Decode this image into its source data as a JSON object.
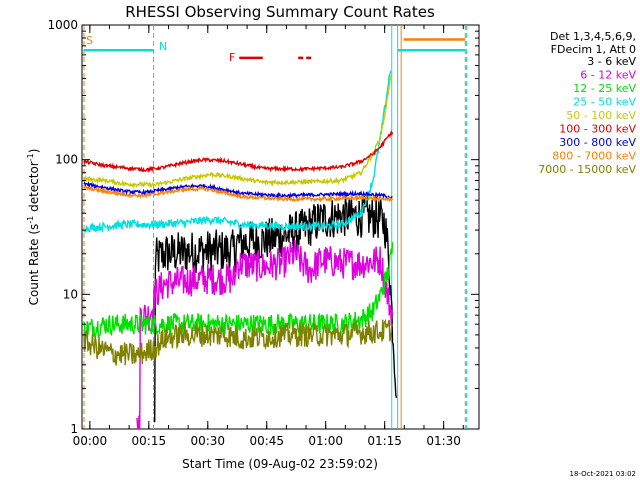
{
  "chart_data": {
    "type": "line",
    "title": "RHESSI Observing Summary Count Rates",
    "xlabel": "Start Time (09-Aug-02 23:59:02)",
    "ylabel_main": "Count Rate (s",
    "ylabel_sup1": "-1",
    "ylabel_mid": " detector",
    "ylabel_sup2": "-1",
    "ylabel_end": ")",
    "footer": "18-Oct-2021 03:02",
    "yscale": "log",
    "ylim": [
      1,
      1000
    ],
    "xlim_min": [
      -1,
      100
    ],
    "ytick_labels": [
      {
        "v": 1,
        "label": "1"
      },
      {
        "v": 10,
        "label": "10"
      },
      {
        "v": 100,
        "label": "100"
      },
      {
        "v": 1000,
        "label": "1000"
      }
    ],
    "xtick_labels": [
      {
        "m": 1,
        "label": "00:00"
      },
      {
        "m": 16,
        "label": "00:15"
      },
      {
        "m": 31,
        "label": "00:30"
      },
      {
        "m": 46,
        "label": "00:45"
      },
      {
        "m": 61,
        "label": "01:00"
      },
      {
        "m": 76,
        "label": "01:15"
      },
      {
        "m": 91,
        "label": "01:30"
      }
    ],
    "legend_header": [
      "Det 1,3,4,5,6,9,",
      "FDecim 1, Att 0"
    ],
    "legend_position": "right",
    "series": [
      {
        "name": "3 - 6 keV",
        "color": "#000000",
        "points": [
          [
            17.5,
            1
          ],
          [
            17.5,
            18
          ],
          [
            20,
            20
          ],
          [
            30,
            21
          ],
          [
            38,
            21
          ],
          [
            38,
            24
          ],
          [
            45,
            25
          ],
          [
            50,
            27
          ],
          [
            55,
            30
          ],
          [
            60,
            36
          ],
          [
            65,
            38
          ],
          [
            70,
            38
          ],
          [
            74,
            37
          ],
          [
            76,
            34
          ],
          [
            77,
            20
          ],
          [
            78,
            6
          ],
          [
            79,
            2
          ]
        ]
      },
      {
        "name": "6 - 12 keV",
        "color": "#e000e0",
        "points": [
          [
            13,
            1
          ],
          [
            13.8,
            1
          ],
          [
            13.8,
            7
          ],
          [
            16,
            7
          ],
          [
            17,
            8
          ],
          [
            17.5,
            10
          ],
          [
            20,
            12
          ],
          [
            30,
            13
          ],
          [
            38,
            13
          ],
          [
            38,
            17
          ],
          [
            45,
            16
          ],
          [
            50,
            17
          ],
          [
            53,
            20
          ],
          [
            55,
            17
          ],
          [
            57,
            15
          ],
          [
            60,
            18
          ],
          [
            65,
            17
          ],
          [
            70,
            17
          ],
          [
            75,
            18
          ],
          [
            77,
            9
          ],
          [
            78,
            7
          ]
        ]
      },
      {
        "name": "12 - 25 keV",
        "color": "#00e000",
        "points": [
          [
            -0.5,
            5.5
          ],
          [
            5,
            6
          ],
          [
            10,
            6
          ],
          [
            15,
            6
          ],
          [
            20,
            6
          ],
          [
            25,
            6
          ],
          [
            30,
            6
          ],
          [
            40,
            6
          ],
          [
            50,
            6
          ],
          [
            60,
            6
          ],
          [
            65,
            6
          ],
          [
            70,
            6.5
          ],
          [
            73,
            7.5
          ],
          [
            75,
            10
          ],
          [
            77,
            15
          ],
          [
            78,
            22
          ]
        ]
      },
      {
        "name": "25 - 50 keV",
        "color": "#00e0e0",
        "points": [
          [
            -0.5,
            31
          ],
          [
            5,
            32
          ],
          [
            10,
            33
          ],
          [
            17.5,
            33
          ],
          [
            25,
            34
          ],
          [
            32,
            36
          ],
          [
            40,
            33
          ],
          [
            50,
            32
          ],
          [
            60,
            32
          ],
          [
            65,
            33
          ],
          [
            70,
            40
          ],
          [
            73,
            70
          ],
          [
            75,
            150
          ],
          [
            76.5,
            300
          ],
          [
            77.5,
            480
          ]
        ]
      },
      {
        "name": "50 - 100 keV",
        "color": "#c8c800",
        "points": [
          [
            -0.5,
            72
          ],
          [
            5,
            70
          ],
          [
            10,
            66
          ],
          [
            17.5,
            65
          ],
          [
            25,
            72
          ],
          [
            32,
            78
          ],
          [
            38,
            74
          ],
          [
            45,
            68
          ],
          [
            55,
            68
          ],
          [
            65,
            70
          ],
          [
            70,
            80
          ],
          [
            73,
            110
          ],
          [
            75,
            150
          ],
          [
            76.5,
            260
          ],
          [
            77.5,
            420
          ]
        ]
      },
      {
        "name": "100 - 300 keV",
        "color": "#e00000",
        "points": [
          [
            -0.5,
            97
          ],
          [
            5,
            90
          ],
          [
            10,
            87
          ],
          [
            15,
            84
          ],
          [
            20,
            88
          ],
          [
            25,
            95
          ],
          [
            30,
            100
          ],
          [
            35,
            98
          ],
          [
            40,
            92
          ],
          [
            45,
            86
          ],
          [
            55,
            85
          ],
          [
            65,
            88
          ],
          [
            70,
            97
          ],
          [
            73,
            110
          ],
          [
            75,
            125
          ],
          [
            77,
            150
          ],
          [
            78,
            160
          ]
        ]
      },
      {
        "name": "300 - 800 keV",
        "color": "#0000e0",
        "points": [
          [
            -0.5,
            66
          ],
          [
            5,
            62
          ],
          [
            10,
            58
          ],
          [
            15,
            57
          ],
          [
            20,
            60
          ],
          [
            25,
            63
          ],
          [
            30,
            64
          ],
          [
            35,
            60
          ],
          [
            40,
            56
          ],
          [
            50,
            54
          ],
          [
            60,
            55
          ],
          [
            70,
            56
          ],
          [
            76,
            54
          ],
          [
            78,
            52
          ]
        ]
      },
      {
        "name": "800 - 7000 keV",
        "color": "#ff7f00",
        "points": [
          [
            -0.5,
            62
          ],
          [
            5,
            58
          ],
          [
            10,
            55
          ],
          [
            15,
            54
          ],
          [
            20,
            57
          ],
          [
            25,
            60
          ],
          [
            30,
            61
          ],
          [
            35,
            57
          ],
          [
            40,
            53
          ],
          [
            50,
            51
          ],
          [
            60,
            51
          ],
          [
            70,
            52
          ],
          [
            76,
            51
          ],
          [
            78,
            51
          ]
        ]
      },
      {
        "name": "7000 - 15000 keV",
        "color": "#808000",
        "points": [
          [
            -0.5,
            4.5
          ],
          [
            3,
            4
          ],
          [
            7,
            3.6
          ],
          [
            10,
            3.6
          ],
          [
            13,
            3.5
          ],
          [
            17.5,
            4
          ],
          [
            20,
            4.7
          ],
          [
            25,
            5
          ],
          [
            30,
            5
          ],
          [
            35,
            5
          ],
          [
            40,
            4.7
          ],
          [
            45,
            4.8
          ],
          [
            50,
            5
          ],
          [
            55,
            5
          ],
          [
            60,
            5
          ],
          [
            65,
            5
          ],
          [
            70,
            5.2
          ],
          [
            75,
            5.3
          ],
          [
            78,
            5.5
          ]
        ]
      }
    ],
    "flags": [
      {
        "label": "S",
        "color": "#ff7f00"
      },
      {
        "label": "N",
        "color": "#00e0e0"
      },
      {
        "label": "F",
        "color": "#e00000"
      }
    ],
    "flag_markers": [
      {
        "kind": "vline",
        "m": -0.5,
        "color": "#ff7f00",
        "dash": true
      },
      {
        "kind": "vline",
        "m": 17.2,
        "color": "#00e0e0",
        "dash": true
      },
      {
        "kind": "vline",
        "m": 80.2,
        "color": "#ff7f00",
        "dash": false
      },
      {
        "kind": "vline",
        "m": 96.5,
        "color": "#ff7f00",
        "dash": true
      },
      {
        "kind": "vline",
        "m": 96.8,
        "color": "#00e0e0",
        "dash": true
      },
      {
        "kind": "vline",
        "m": 77.8,
        "color": "#00e0e0",
        "dash": false
      },
      {
        "kind": "vline",
        "m": 79.3,
        "color": "#00e0e0",
        "dash": false
      },
      {
        "kind": "hseg",
        "m0": 79.3,
        "m1": 96.5,
        "v": 650,
        "color": "#00e0e0",
        "dash": false
      },
      {
        "kind": "hseg",
        "m0": 80.8,
        "m1": 96.5,
        "v": 780,
        "color": "#ff7f00",
        "dash": false
      },
      {
        "kind": "hseg",
        "m0": -0.5,
        "m1": 17.2,
        "v": 650,
        "color": "#00e0e0",
        "dash": false
      },
      {
        "kind": "hseg",
        "m0": 39,
        "m1": 45,
        "v": 570,
        "color": "#e00000",
        "dash": false
      },
      {
        "kind": "hseg",
        "m0": 54,
        "m1": 58,
        "v": 570,
        "color": "#e00000",
        "dash": true
      }
    ]
  }
}
